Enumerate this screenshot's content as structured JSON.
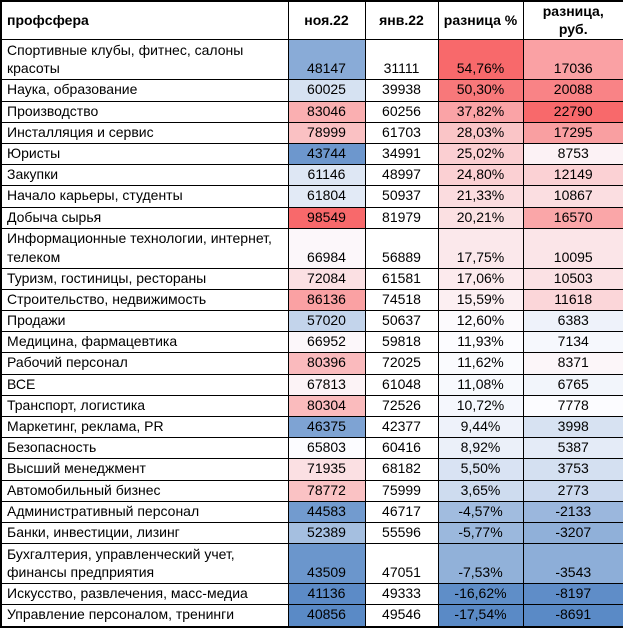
{
  "chart_data": {
    "type": "table",
    "columns": [
      "профсфера",
      "ноя.22",
      "янв.22",
      "разница %",
      "разница, руб."
    ],
    "rows": [
      {
        "label": "Спортивные клубы, фитнес, салоны красоты",
        "nov22": 48147,
        "jan22": 31111,
        "diff_pct": "54,76%",
        "diff_rub": 17036,
        "tall": true
      },
      {
        "label": "Наука, образование",
        "nov22": 60025,
        "jan22": 39938,
        "diff_pct": "50,30%",
        "diff_rub": 20088
      },
      {
        "label": "Производство",
        "nov22": 83046,
        "jan22": 60256,
        "diff_pct": "37,82%",
        "diff_rub": 22790
      },
      {
        "label": "Инсталляция и сервис",
        "nov22": 78999,
        "jan22": 61703,
        "diff_pct": "28,03%",
        "diff_rub": 17295
      },
      {
        "label": "Юристы",
        "nov22": 43744,
        "jan22": 34991,
        "diff_pct": "25,02%",
        "diff_rub": 8753
      },
      {
        "label": "Закупки",
        "nov22": 61146,
        "jan22": 48997,
        "diff_pct": "24,80%",
        "diff_rub": 12149
      },
      {
        "label": "Начало карьеры, студенты",
        "nov22": 61804,
        "jan22": 50937,
        "diff_pct": "21,33%",
        "diff_rub": 10867
      },
      {
        "label": "Добыча сырья",
        "nov22": 98549,
        "jan22": 81979,
        "diff_pct": "20,21%",
        "diff_rub": 16570
      },
      {
        "label": "Информационные технологии, интернет, телеком",
        "nov22": 66984,
        "jan22": 56889,
        "diff_pct": "17,75%",
        "diff_rub": 10095,
        "tall": true
      },
      {
        "label": "Туризм, гостиницы, рестораны",
        "nov22": 72084,
        "jan22": 61581,
        "diff_pct": "17,06%",
        "diff_rub": 10503
      },
      {
        "label": "Строительство, недвижимость",
        "nov22": 86136,
        "jan22": 74518,
        "diff_pct": "15,59%",
        "diff_rub": 11618
      },
      {
        "label": "Продажи",
        "nov22": 57020,
        "jan22": 50637,
        "diff_pct": "12,60%",
        "diff_rub": 6383
      },
      {
        "label": "Медицина, фармацевтика",
        "nov22": 66952,
        "jan22": 59818,
        "diff_pct": "11,93%",
        "diff_rub": 7134
      },
      {
        "label": "Рабочий персонал",
        "nov22": 80396,
        "jan22": 72025,
        "diff_pct": "11,62%",
        "diff_rub": 8371
      },
      {
        "label": "ВСЕ",
        "nov22": 67813,
        "jan22": 61048,
        "diff_pct": "11,08%",
        "diff_rub": 6765
      },
      {
        "label": "Транспорт, логистика",
        "nov22": 80304,
        "jan22": 72526,
        "diff_pct": "10,72%",
        "diff_rub": 7778
      },
      {
        "label": "Маркетинг, реклама, PR",
        "nov22": 46375,
        "jan22": 42377,
        "diff_pct": "9,44%",
        "diff_rub": 3998
      },
      {
        "label": "Безопасность",
        "nov22": 65803,
        "jan22": 60416,
        "diff_pct": "8,92%",
        "diff_rub": 5387
      },
      {
        "label": "Высший менеджмент",
        "nov22": 71935,
        "jan22": 68182,
        "diff_pct": "5,50%",
        "diff_rub": 3753
      },
      {
        "label": "Автомобильный бизнес",
        "nov22": 78772,
        "jan22": 75999,
        "diff_pct": "3,65%",
        "diff_rub": 2773
      },
      {
        "label": "Административный персонал",
        "nov22": 44583,
        "jan22": 46717,
        "diff_pct": "-4,57%",
        "diff_rub": -2133
      },
      {
        "label": "Банки, инвестиции, лизинг",
        "nov22": 52389,
        "jan22": 55596,
        "diff_pct": "-5,77%",
        "diff_rub": -3207
      },
      {
        "label": "Бухгалтерия, управленческий учет, финансы предприятия",
        "nov22": 43509,
        "jan22": 47051,
        "diff_pct": "-7,53%",
        "diff_rub": -3543,
        "tall": true
      },
      {
        "label": "Искусство, развлечения, масс-медиа",
        "nov22": 41136,
        "jan22": 49333,
        "diff_pct": "-16,62%",
        "diff_rub": -8197
      },
      {
        "label": "Управление персоналом, тренинги",
        "nov22": 40856,
        "jan22": 49546,
        "diff_pct": "-17,54%",
        "diff_rub": -8691
      }
    ],
    "conditional_formatting": {
      "applies_to_columns": [
        "nov22",
        "diff_pct",
        "diff_rub"
      ],
      "min_color": "#5A8AC6",
      "mid_color": "#FCFCFF",
      "max_color": "#F8696B",
      "midpoint": "median",
      "border_color": "#000000",
      "text_color": "#000000"
    }
  }
}
